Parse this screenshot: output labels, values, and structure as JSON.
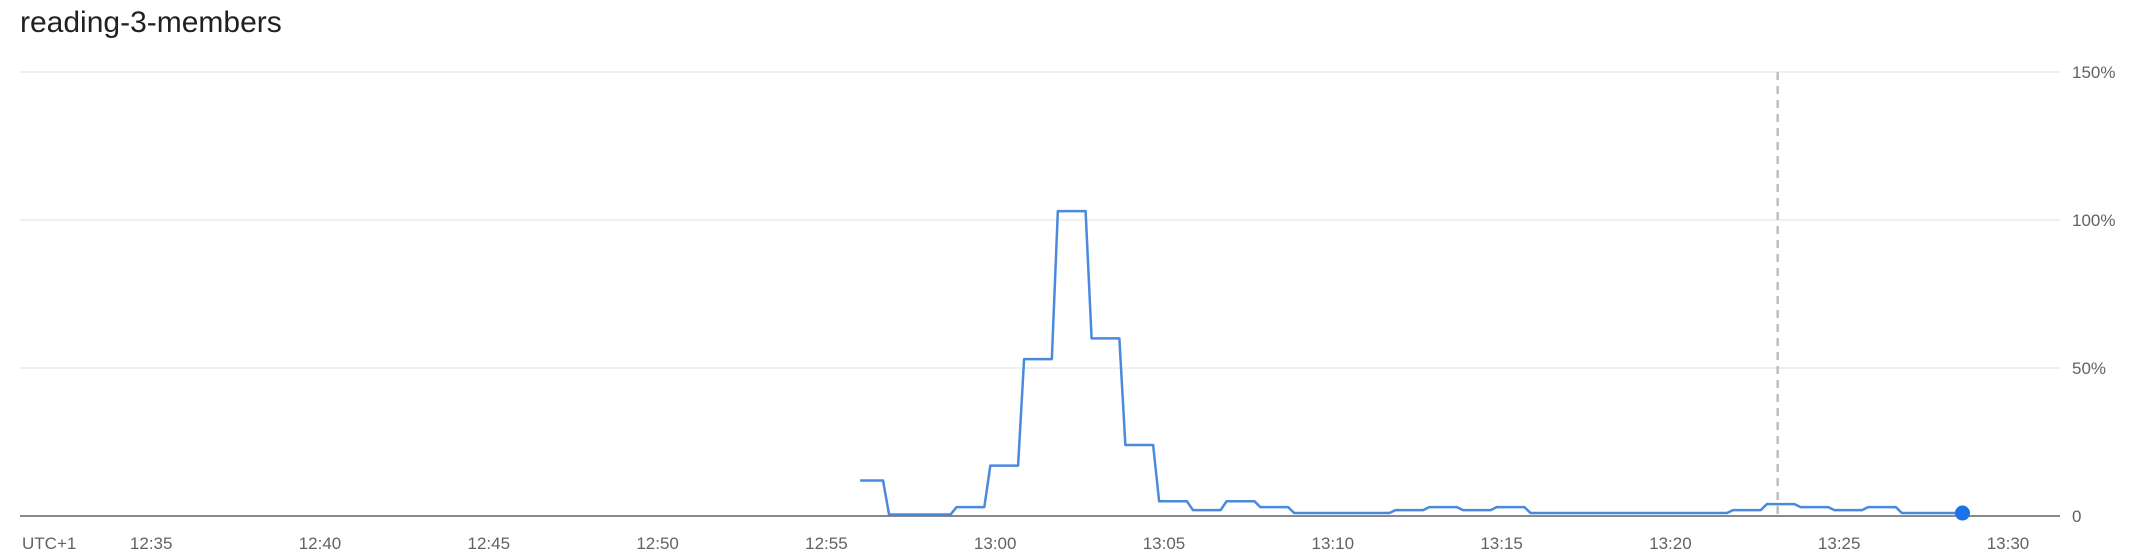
{
  "chart_data": {
    "type": "line",
    "title": "reading-3-members",
    "timezone_label": "UTC+1",
    "x_tick_labels": [
      "12:35",
      "12:40",
      "12:45",
      "12:50",
      "12:55",
      "13:00",
      "13:05",
      "13:10",
      "13:15",
      "13:20",
      "13:25",
      "13:30"
    ],
    "y_tick_labels": [
      "0",
      "50%",
      "100%",
      "150%"
    ],
    "y_ticks": [
      0,
      50,
      100,
      150
    ],
    "xlim": [
      "12:30",
      "13:30"
    ],
    "ylim": [
      0,
      150
    ],
    "y_axis_position": "right",
    "grid": "horizontal",
    "cursor_time": "13:23",
    "series": [
      {
        "color": "#4a89dc",
        "x": [
          "12:56",
          "12:57",
          "12:58",
          "12:59",
          "13:00",
          "13:01",
          "13:02",
          "13:03",
          "13:04",
          "13:05",
          "13:06",
          "13:07",
          "13:08",
          "13:09",
          "13:10",
          "13:11",
          "13:12",
          "13:13",
          "13:14",
          "13:15",
          "13:16",
          "13:17",
          "13:18",
          "13:19",
          "13:20",
          "13:21",
          "13:22",
          "13:23",
          "13:24",
          "13:25",
          "13:26",
          "13:27",
          "13:28"
        ],
        "values": [
          12,
          0.5,
          0.5,
          3,
          17,
          53,
          103,
          60,
          24,
          5,
          2,
          5,
          3,
          1,
          1,
          1,
          2,
          3,
          2,
          3,
          1,
          1,
          1,
          1,
          1,
          1,
          2,
          4,
          3,
          2,
          3,
          1,
          1
        ]
      }
    ]
  }
}
